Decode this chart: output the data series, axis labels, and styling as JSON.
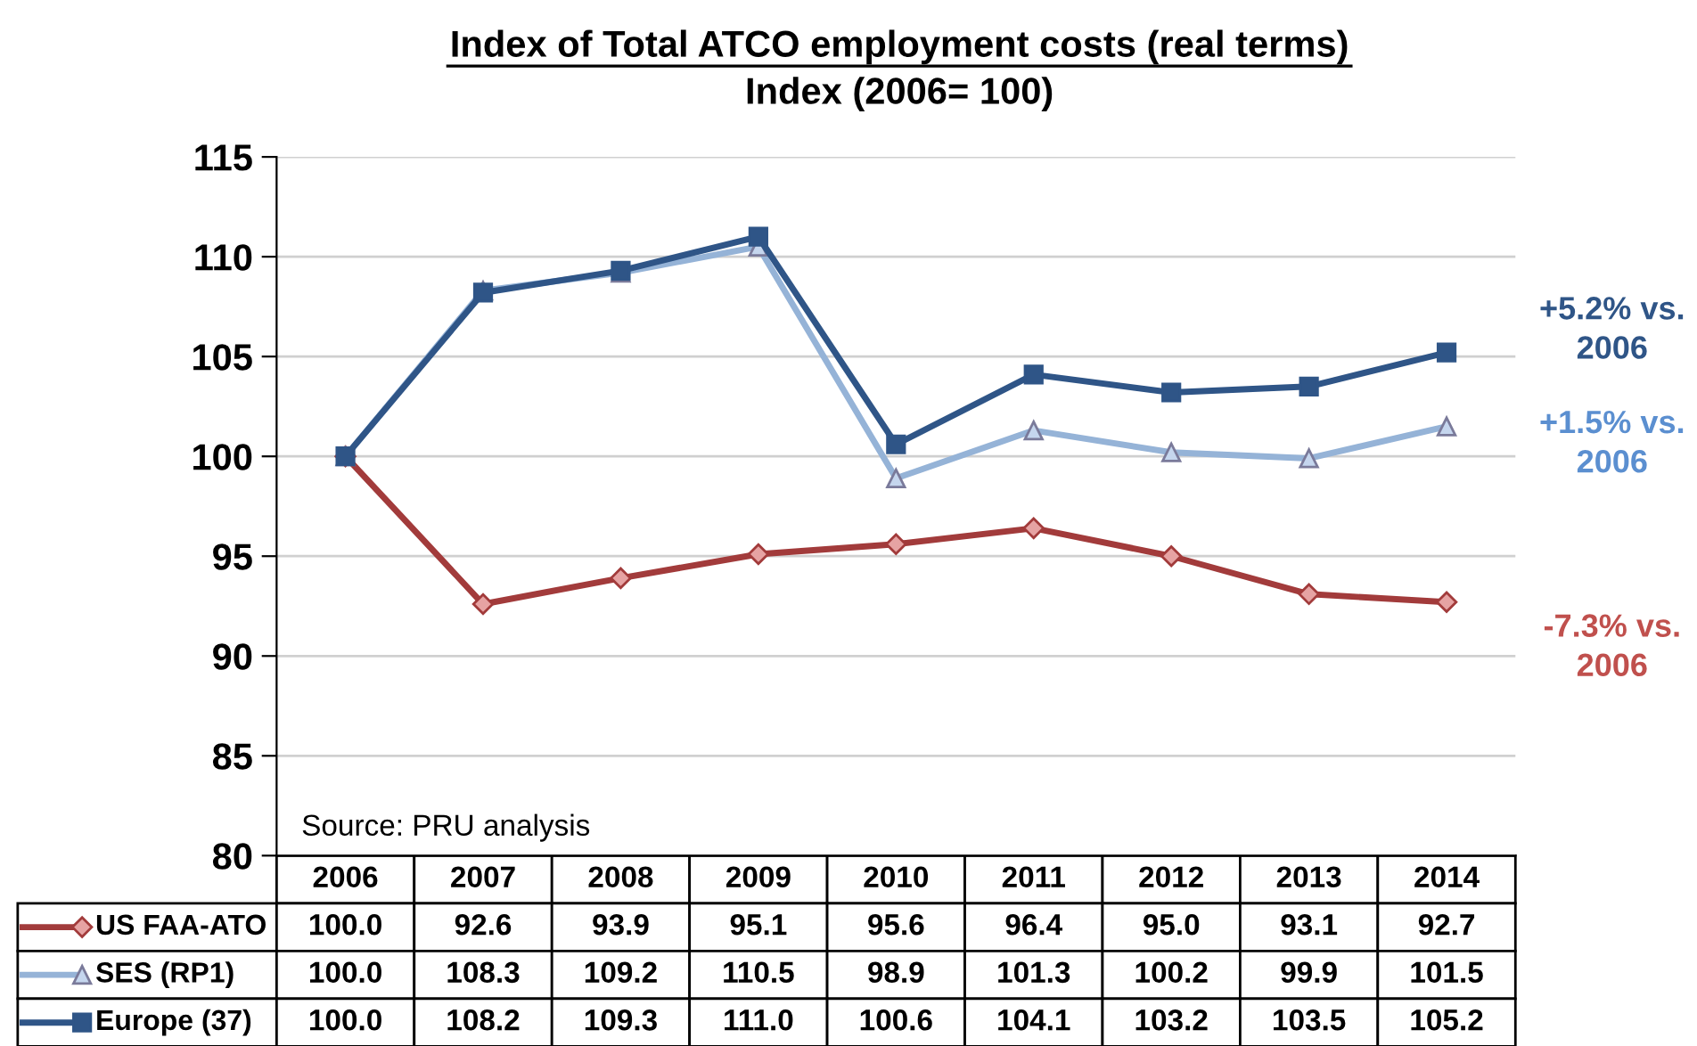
{
  "chart_data": {
    "type": "line",
    "title": "Index of Total ATCO employment costs (real terms)",
    "subtitle": "Index (2006= 100)",
    "categories": [
      "2006",
      "2007",
      "2008",
      "2009",
      "2010",
      "2011",
      "2012",
      "2013",
      "2014"
    ],
    "series": [
      {
        "name": "US FAA-ATO",
        "color": "#a23b3b",
        "marker": "diamond",
        "values": [
          100.0,
          92.6,
          93.9,
          95.1,
          95.6,
          96.4,
          95.0,
          93.1,
          92.7
        ],
        "value_labels": [
          "100.0",
          "92.6",
          "93.9",
          "95.1",
          "95.6",
          "96.4",
          "95.0",
          "93.1",
          "92.7"
        ]
      },
      {
        "name": "SES (RP1)",
        "color": "#95b3d7",
        "marker": "triangle",
        "values": [
          100.0,
          108.3,
          109.2,
          110.5,
          98.9,
          101.3,
          100.2,
          99.9,
          101.5
        ],
        "value_labels": [
          "100.0",
          "108.3",
          "109.2",
          "110.5",
          "98.9",
          "101.3",
          "100.2",
          "99.9",
          "101.5"
        ]
      },
      {
        "name": "Europe (37)",
        "color": "#2f5587",
        "marker": "square",
        "values": [
          100.0,
          108.2,
          109.3,
          111.0,
          100.6,
          104.1,
          103.2,
          103.5,
          105.2
        ],
        "value_labels": [
          "100.0",
          "108.2",
          "109.3",
          "111.0",
          "100.6",
          "104.1",
          "103.2",
          "103.5",
          "105.2"
        ]
      }
    ],
    "ylim": [
      80,
      115
    ],
    "yticks": [
      80,
      85,
      90,
      95,
      100,
      105,
      110,
      115
    ],
    "grid": "y",
    "tick_labels": "y",
    "legend": "bottom left",
    "annotations": [
      "-7.3% vs. 2006",
      "+1.5% vs. 2006",
      "+5.2% vs. 2006",
      "Source: PRU analysis"
    ]
  }
}
